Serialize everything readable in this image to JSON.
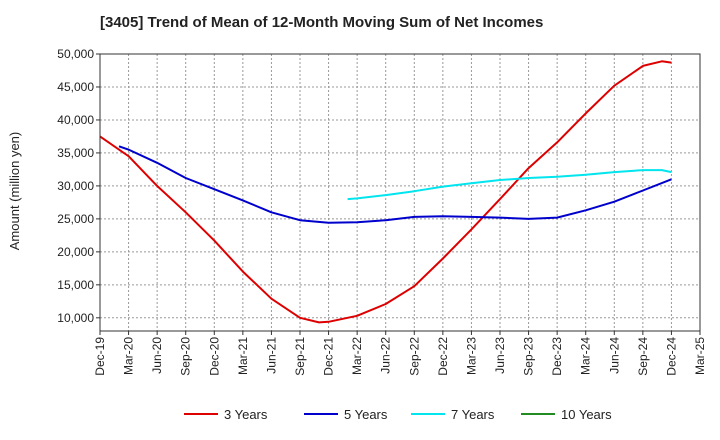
{
  "chart_data": {
    "type": "line",
    "title": "[3405]  Trend of Mean of 12-Month Moving Sum of Net Incomes",
    "ylabel": "Amount (million yen)",
    "xlabel": "",
    "x_ticks": [
      "Dec-19",
      "Mar-20",
      "Jun-20",
      "Sep-20",
      "Dec-20",
      "Mar-21",
      "Jun-21",
      "Sep-21",
      "Dec-21",
      "Mar-22",
      "Jun-22",
      "Sep-22",
      "Dec-22",
      "Mar-23",
      "Jun-23",
      "Sep-23",
      "Dec-23",
      "Mar-24",
      "Jun-24",
      "Sep-24",
      "Dec-24",
      "Mar-25"
    ],
    "y_ticks": [
      "10,000",
      "15,000",
      "20,000",
      "25,000",
      "30,000",
      "35,000",
      "40,000",
      "45,000",
      "50,000"
    ],
    "ylim": [
      8000,
      50000
    ],
    "grid": true,
    "legend_position": "bottom",
    "series": [
      {
        "name": "3 Years",
        "color": "#dd0000",
        "points": [
          [
            "Dec-19",
            37500
          ],
          [
            "Mar-20",
            34500
          ],
          [
            "Jun-20",
            30000
          ],
          [
            "Sep-20",
            26000
          ],
          [
            "Dec-20",
            21700
          ],
          [
            "Mar-21",
            17000
          ],
          [
            "Jun-21",
            12900
          ],
          [
            "Sep-21",
            10000
          ],
          [
            "Nov-21",
            9300
          ],
          [
            "Dec-21",
            9400
          ],
          [
            "Mar-22",
            10300
          ],
          [
            "Jun-22",
            12100
          ],
          [
            "Sep-22",
            14800
          ],
          [
            "Dec-22",
            19000
          ],
          [
            "Mar-23",
            23400
          ],
          [
            "Jun-23",
            28000
          ],
          [
            "Sep-23",
            32700
          ],
          [
            "Dec-23",
            36600
          ],
          [
            "Mar-24",
            41000
          ],
          [
            "Jun-24",
            45200
          ],
          [
            "Sep-24",
            48200
          ],
          [
            "Nov-24",
            48900
          ],
          [
            "Dec-24",
            48700
          ]
        ]
      },
      {
        "name": "5 Years",
        "color": "#0000cc",
        "points": [
          [
            "Feb-20",
            36000
          ],
          [
            "Mar-20",
            35500
          ],
          [
            "Jun-20",
            33500
          ],
          [
            "Sep-20",
            31200
          ],
          [
            "Dec-20",
            29500
          ],
          [
            "Mar-21",
            27800
          ],
          [
            "Jun-21",
            26000
          ],
          [
            "Sep-21",
            24800
          ],
          [
            "Dec-21",
            24400
          ],
          [
            "Mar-22",
            24500
          ],
          [
            "Jun-22",
            24800
          ],
          [
            "Sep-22",
            25300
          ],
          [
            "Dec-22",
            25400
          ],
          [
            "Mar-23",
            25300
          ],
          [
            "Jun-23",
            25200
          ],
          [
            "Sep-23",
            25000
          ],
          [
            "Dec-23",
            25200
          ],
          [
            "Mar-24",
            26300
          ],
          [
            "Jun-24",
            27600
          ],
          [
            "Sep-24",
            29300
          ],
          [
            "Dec-24",
            31000
          ]
        ]
      },
      {
        "name": "7 Years",
        "color": "#00e5ee",
        "points": [
          [
            "Feb-22",
            28000
          ],
          [
            "Mar-22",
            28100
          ],
          [
            "Jun-22",
            28600
          ],
          [
            "Sep-22",
            29200
          ],
          [
            "Dec-22",
            29900
          ],
          [
            "Mar-23",
            30400
          ],
          [
            "Jun-23",
            30900
          ],
          [
            "Sep-23",
            31200
          ],
          [
            "Dec-23",
            31400
          ],
          [
            "Mar-24",
            31700
          ],
          [
            "Jun-24",
            32100
          ],
          [
            "Sep-24",
            32400
          ],
          [
            "Nov-24",
            32400
          ],
          [
            "Dec-24",
            32100
          ]
        ]
      },
      {
        "name": "10 Years",
        "color": "#228b22",
        "points": []
      }
    ]
  }
}
